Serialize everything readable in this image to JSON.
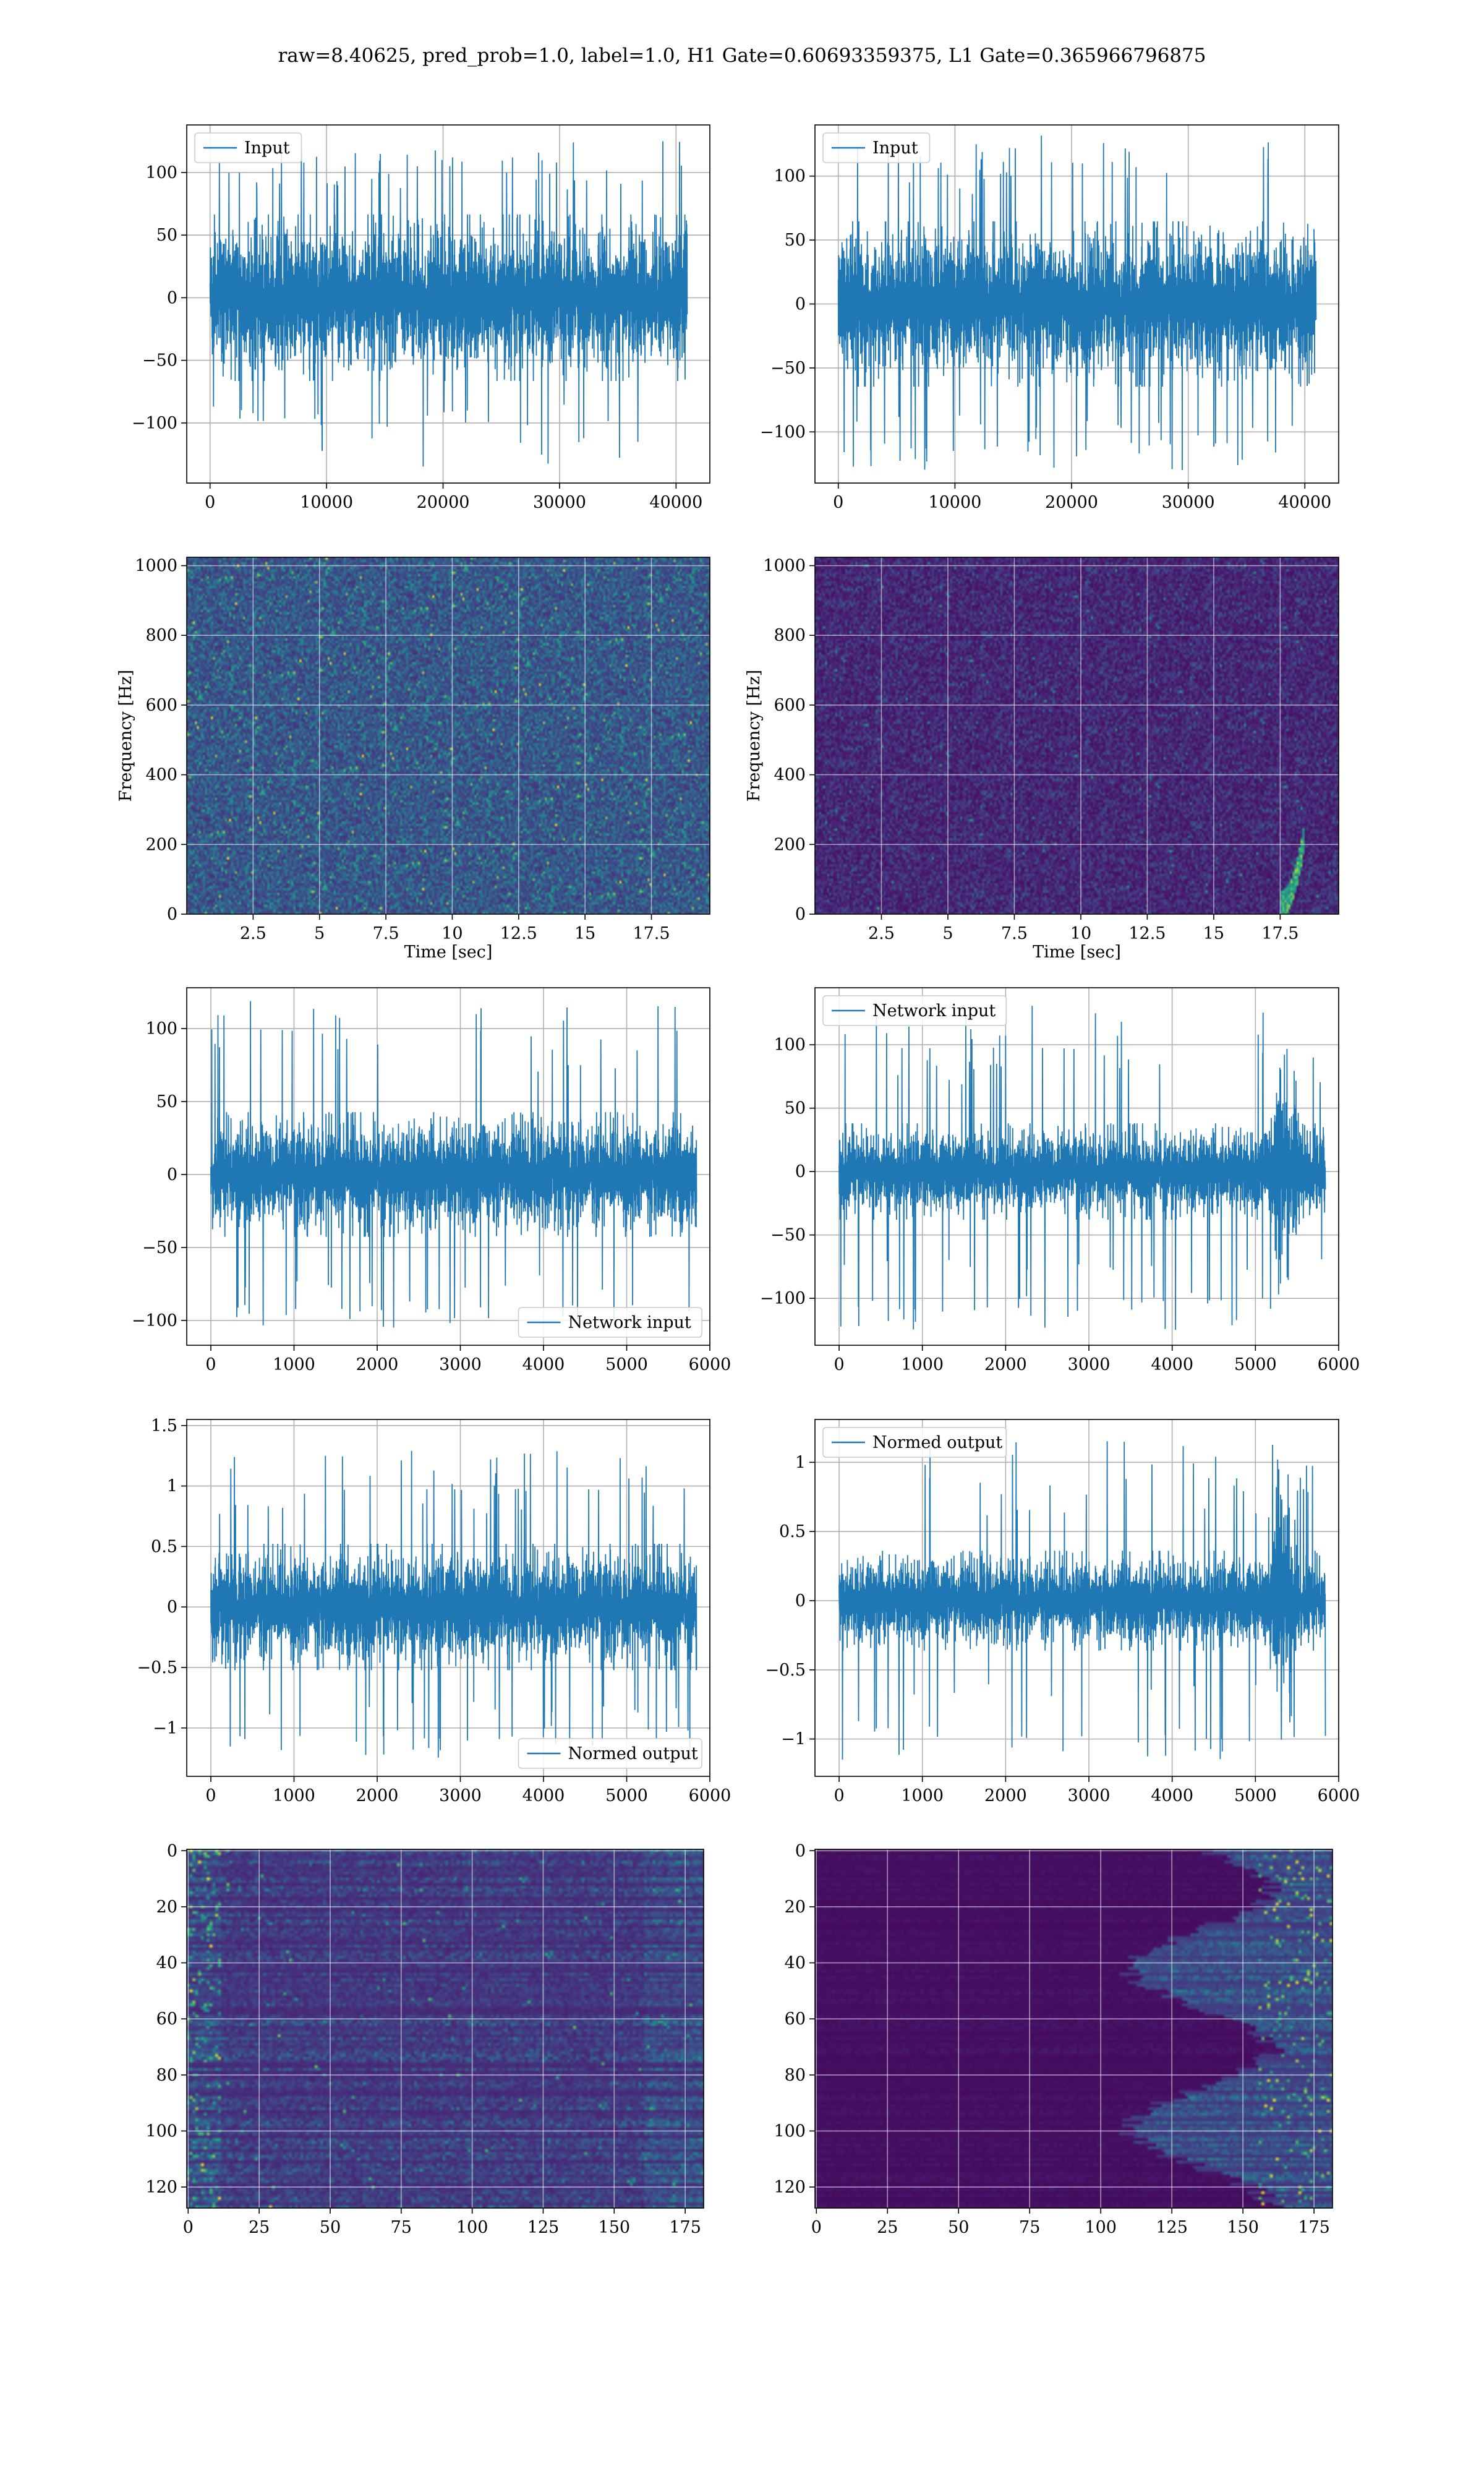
{
  "figure": {
    "title": "raw=8.40625, pred_prob=1.0, label=1.0, H1 Gate=0.60693359375, L1 Gate=0.365966796875",
    "line_color": "#1f77b4",
    "colormap": "viridis"
  },
  "chart_data": [
    {
      "id": "row1-left",
      "type": "line",
      "description_only": false,
      "legend": "Input",
      "legend_loc": "upper left",
      "xlim": [
        -2000,
        42900
      ],
      "ylim": [
        -148,
        138
      ],
      "xticks": [
        0,
        10000,
        20000,
        30000,
        40000
      ],
      "yticks": [
        -100,
        -50,
        0,
        50,
        100
      ],
      "x_range": [
        0,
        40960
      ],
      "noise": {
        "core": 70,
        "spikes_up": [
          100,
          110,
          120,
          130
        ],
        "spikes_down": [
          -100,
          -113,
          -135
        ]
      }
    },
    {
      "id": "row1-right",
      "type": "line",
      "legend": "Input",
      "legend_loc": "upper left",
      "xlim": [
        -2000,
        42900
      ],
      "ylim": [
        -140,
        140
      ],
      "xticks": [
        0,
        10000,
        20000,
        30000,
        40000
      ],
      "yticks": [
        -100,
        -50,
        0,
        50,
        100
      ],
      "x_range": [
        0,
        40960
      ],
      "noise": {
        "core": 68,
        "spikes_up": [
          100,
          115,
          125,
          133
        ],
        "spikes_down": [
          -100,
          -118,
          -130
        ]
      }
    },
    {
      "id": "row2-left",
      "type": "heatmap",
      "xlim": [
        0,
        19.7
      ],
      "ylim": [
        0,
        1024
      ],
      "xticks": [
        2.5,
        5.0,
        7.5,
        10.0,
        12.5,
        15.0,
        17.5
      ],
      "yticks": [
        0,
        200,
        400,
        600,
        800,
        1000
      ],
      "xlabel": "Time [sec]",
      "ylabel": "Frequency [Hz]",
      "texture": "speckle",
      "chirp": null
    },
    {
      "id": "row2-right",
      "type": "heatmap",
      "xlim": [
        0,
        19.7
      ],
      "ylim": [
        0,
        1024
      ],
      "xticks": [
        2.5,
        5.0,
        7.5,
        10.0,
        12.5,
        15.0,
        17.5
      ],
      "yticks": [
        0,
        200,
        400,
        600,
        800,
        1000
      ],
      "xlabel": "Time [sec]",
      "ylabel": "Frequency [Hz]",
      "texture": "dark-speckle",
      "chirp": {
        "t_start": 17.5,
        "t_end": 18.4,
        "f_start": 30,
        "f_end": 240
      }
    },
    {
      "id": "row3-left",
      "type": "line",
      "legend": "Network input",
      "legend_loc": "lower right",
      "xlim": [
        -290,
        6000
      ],
      "ylim": [
        -117,
        128
      ],
      "xticks": [
        0,
        1000,
        2000,
        3000,
        4000,
        5000,
        6000
      ],
      "yticks": [
        -100,
        -50,
        0,
        50,
        100
      ],
      "x_range": [
        0,
        5840
      ],
      "noise": {
        "core": 45,
        "spikes_up": [
          80,
          100,
          112,
          120
        ],
        "spikes_down": [
          -80,
          -100,
          -105
        ]
      }
    },
    {
      "id": "row3-right",
      "type": "line",
      "legend": "Network input",
      "legend_loc": "upper left",
      "xlim": [
        -290,
        6000
      ],
      "ylim": [
        -137,
        145
      ],
      "xticks": [
        0,
        1000,
        2000,
        3000,
        4000,
        5000,
        6000
      ],
      "yticks": [
        -100,
        -50,
        0,
        50,
        100
      ],
      "x_range": [
        0,
        5840
      ],
      "noise": {
        "core": 40,
        "spikes_up": [
          80,
          95,
          110,
          132
        ],
        "spikes_down": [
          -80,
          -110,
          -125
        ]
      },
      "burst": {
        "x_start": 5150,
        "x_end": 5550,
        "amp": 115
      }
    },
    {
      "id": "row4-left",
      "type": "line",
      "legend": "Normed output",
      "legend_loc": "lower right",
      "xlim": [
        -290,
        6000
      ],
      "ylim": [
        -1.4,
        1.55
      ],
      "xticks": [
        0,
        1000,
        2000,
        3000,
        4000,
        5000,
        6000
      ],
      "yticks": [
        -1.0,
        -0.5,
        0.0,
        0.5,
        1.0,
        1.5
      ],
      "x_range": [
        0,
        5840
      ],
      "noise": {
        "core": 0.55,
        "spikes_up": [
          0.9,
          1.1,
          1.3
        ],
        "spikes_down": [
          -0.9,
          -1.1,
          -1.25
        ]
      }
    },
    {
      "id": "row4-right",
      "type": "line",
      "legend": "Normed output",
      "legend_loc": "upper left",
      "xlim": [
        -290,
        6000
      ],
      "ylim": [
        -1.27,
        1.31
      ],
      "xticks": [
        0,
        1000,
        2000,
        3000,
        4000,
        5000,
        6000
      ],
      "yticks": [
        -1.0,
        -0.5,
        0.0,
        0.5,
        1.0
      ],
      "x_range": [
        0,
        5840
      ],
      "noise": {
        "core": 0.38,
        "spikes_up": [
          0.7,
          0.9,
          1.0,
          1.2
        ],
        "spikes_down": [
          -0.7,
          -1.0,
          -1.15
        ]
      },
      "burst": {
        "x_start": 5150,
        "x_end": 5550,
        "amp": 1.0
      }
    },
    {
      "id": "row5-left",
      "type": "heatmap",
      "xlim": [
        -0.5,
        181.5
      ],
      "ylim": [
        127.5,
        -0.5
      ],
      "xticks": [
        0,
        25,
        50,
        75,
        100,
        125,
        150,
        175
      ],
      "yticks": [
        0,
        20,
        40,
        60,
        80,
        100,
        120
      ],
      "xlabel": "",
      "ylabel": "",
      "texture": "feature-map-left"
    },
    {
      "id": "row5-right",
      "type": "heatmap",
      "xlim": [
        -0.5,
        181.5
      ],
      "ylim": [
        127.5,
        -0.5
      ],
      "xticks": [
        0,
        25,
        50,
        75,
        100,
        125,
        150,
        175
      ],
      "yticks": [
        0,
        20,
        40,
        60,
        80,
        100,
        120
      ],
      "xlabel": "",
      "ylabel": "",
      "texture": "feature-map-right"
    }
  ]
}
